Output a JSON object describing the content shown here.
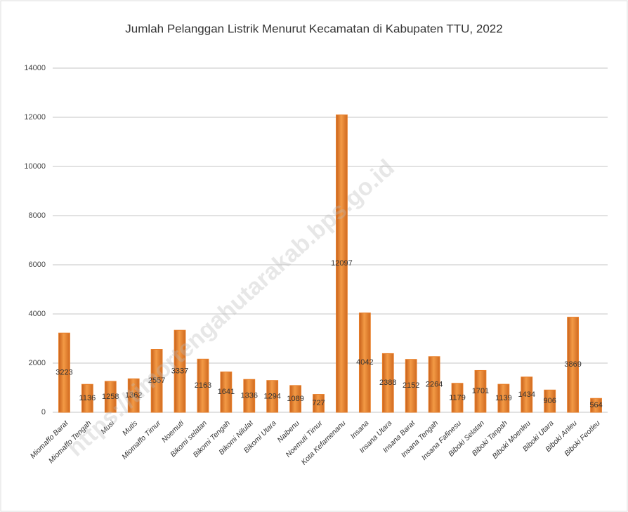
{
  "chart_data": {
    "type": "bar",
    "title": "Jumlah Pelanggan Listrik Menurut Kecamatan di Kabupaten TTU, 2022",
    "watermark": "https://timortengahutarakab.bps.go.id",
    "categories": [
      "Miomaffo Barat",
      "Miomaffo Tengah",
      "Musi",
      "Mutis",
      "Miomaffo Timur",
      "Noemuti",
      "Bikomi selatan",
      "Bikomi Tengah",
      "Bikomi Nilulat",
      "Bikomi Utara",
      "Naibenu",
      "Noemuti Timur",
      "Kota Kefamenanu",
      "Insana",
      "Insana Utara",
      "Insana Barat",
      "Insana Tengah",
      "Insana Fafinesu",
      "Biboki Selatan",
      "Biboki Tanpah",
      "Biboki Moenleu",
      "Biboki Utara",
      "Biboki Anleu",
      "Biboki Feotleu"
    ],
    "values": [
      3223,
      1136,
      1258,
      1362,
      2557,
      3337,
      2163,
      1641,
      1336,
      1294,
      1089,
      727,
      12097,
      4042,
      2388,
      2152,
      2264,
      1179,
      1701,
      1139,
      1434,
      906,
      3869,
      564
    ],
    "color": "#e87f2a",
    "ylim": [
      0,
      14000
    ],
    "yticks": [
      0,
      2000,
      4000,
      6000,
      8000,
      10000,
      12000,
      14000
    ],
    "grid": true
  }
}
